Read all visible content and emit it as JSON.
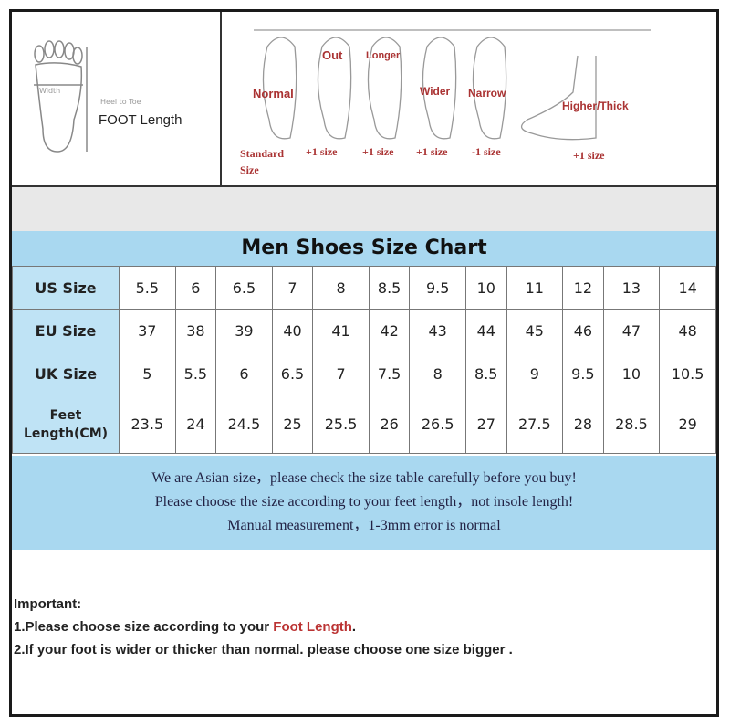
{
  "foot_diagram": {
    "width_label": "Width",
    "heel_label": "Heel to Toe",
    "foot_length": "FOOT Length"
  },
  "foot_types": [
    {
      "label": "Normal",
      "adjust": "Standard Size"
    },
    {
      "label": "Out",
      "adjust": "+1 size"
    },
    {
      "label": "Longer",
      "adjust": "+1 size"
    },
    {
      "label": "Wider",
      "adjust": "+1 size"
    },
    {
      "label": "Narrow",
      "adjust": "-1 size"
    },
    {
      "label": "Higher/Thick",
      "adjust": "+1 size"
    }
  ],
  "table": {
    "title": "Men Shoes Size Chart",
    "rows": [
      {
        "header": "US Size",
        "values": [
          "5.5",
          "6",
          "6.5",
          "7",
          "8",
          "8.5",
          "9.5",
          "10",
          "11",
          "12",
          "13",
          "14"
        ]
      },
      {
        "header": "EU Size",
        "values": [
          "37",
          "38",
          "39",
          "40",
          "41",
          "42",
          "43",
          "44",
          "45",
          "46",
          "47",
          "48"
        ]
      },
      {
        "header": "UK Size",
        "values": [
          "5",
          "5.5",
          "6",
          "6.5",
          "7",
          "7.5",
          "8",
          "8.5",
          "9",
          "9.5",
          "10",
          "10.5"
        ]
      },
      {
        "header": "Feet Length(CM)",
        "values": [
          "23.5",
          "24",
          "24.5",
          "25",
          "25.5",
          "26",
          "26.5",
          "27",
          "27.5",
          "28",
          "28.5",
          "29"
        ]
      }
    ]
  },
  "notes": [
    "We are Asian size，please check the size table carefully before you buy!",
    "Please choose the size according to your feet length，not insole length!",
    "Manual measurement，1-3mm error is normal"
  ],
  "important": {
    "heading": "Important:",
    "line1_prefix": "1.Please choose size according to your ",
    "line1_highlight": "Foot Length",
    "line1_suffix": ".",
    "line2": "2.If your foot is wider or thicker than normal. please choose one size bigger ."
  },
  "colors": {
    "band": "#a9d8f0",
    "header_cell": "#bfe3f5",
    "highlight": "#b33333"
  }
}
